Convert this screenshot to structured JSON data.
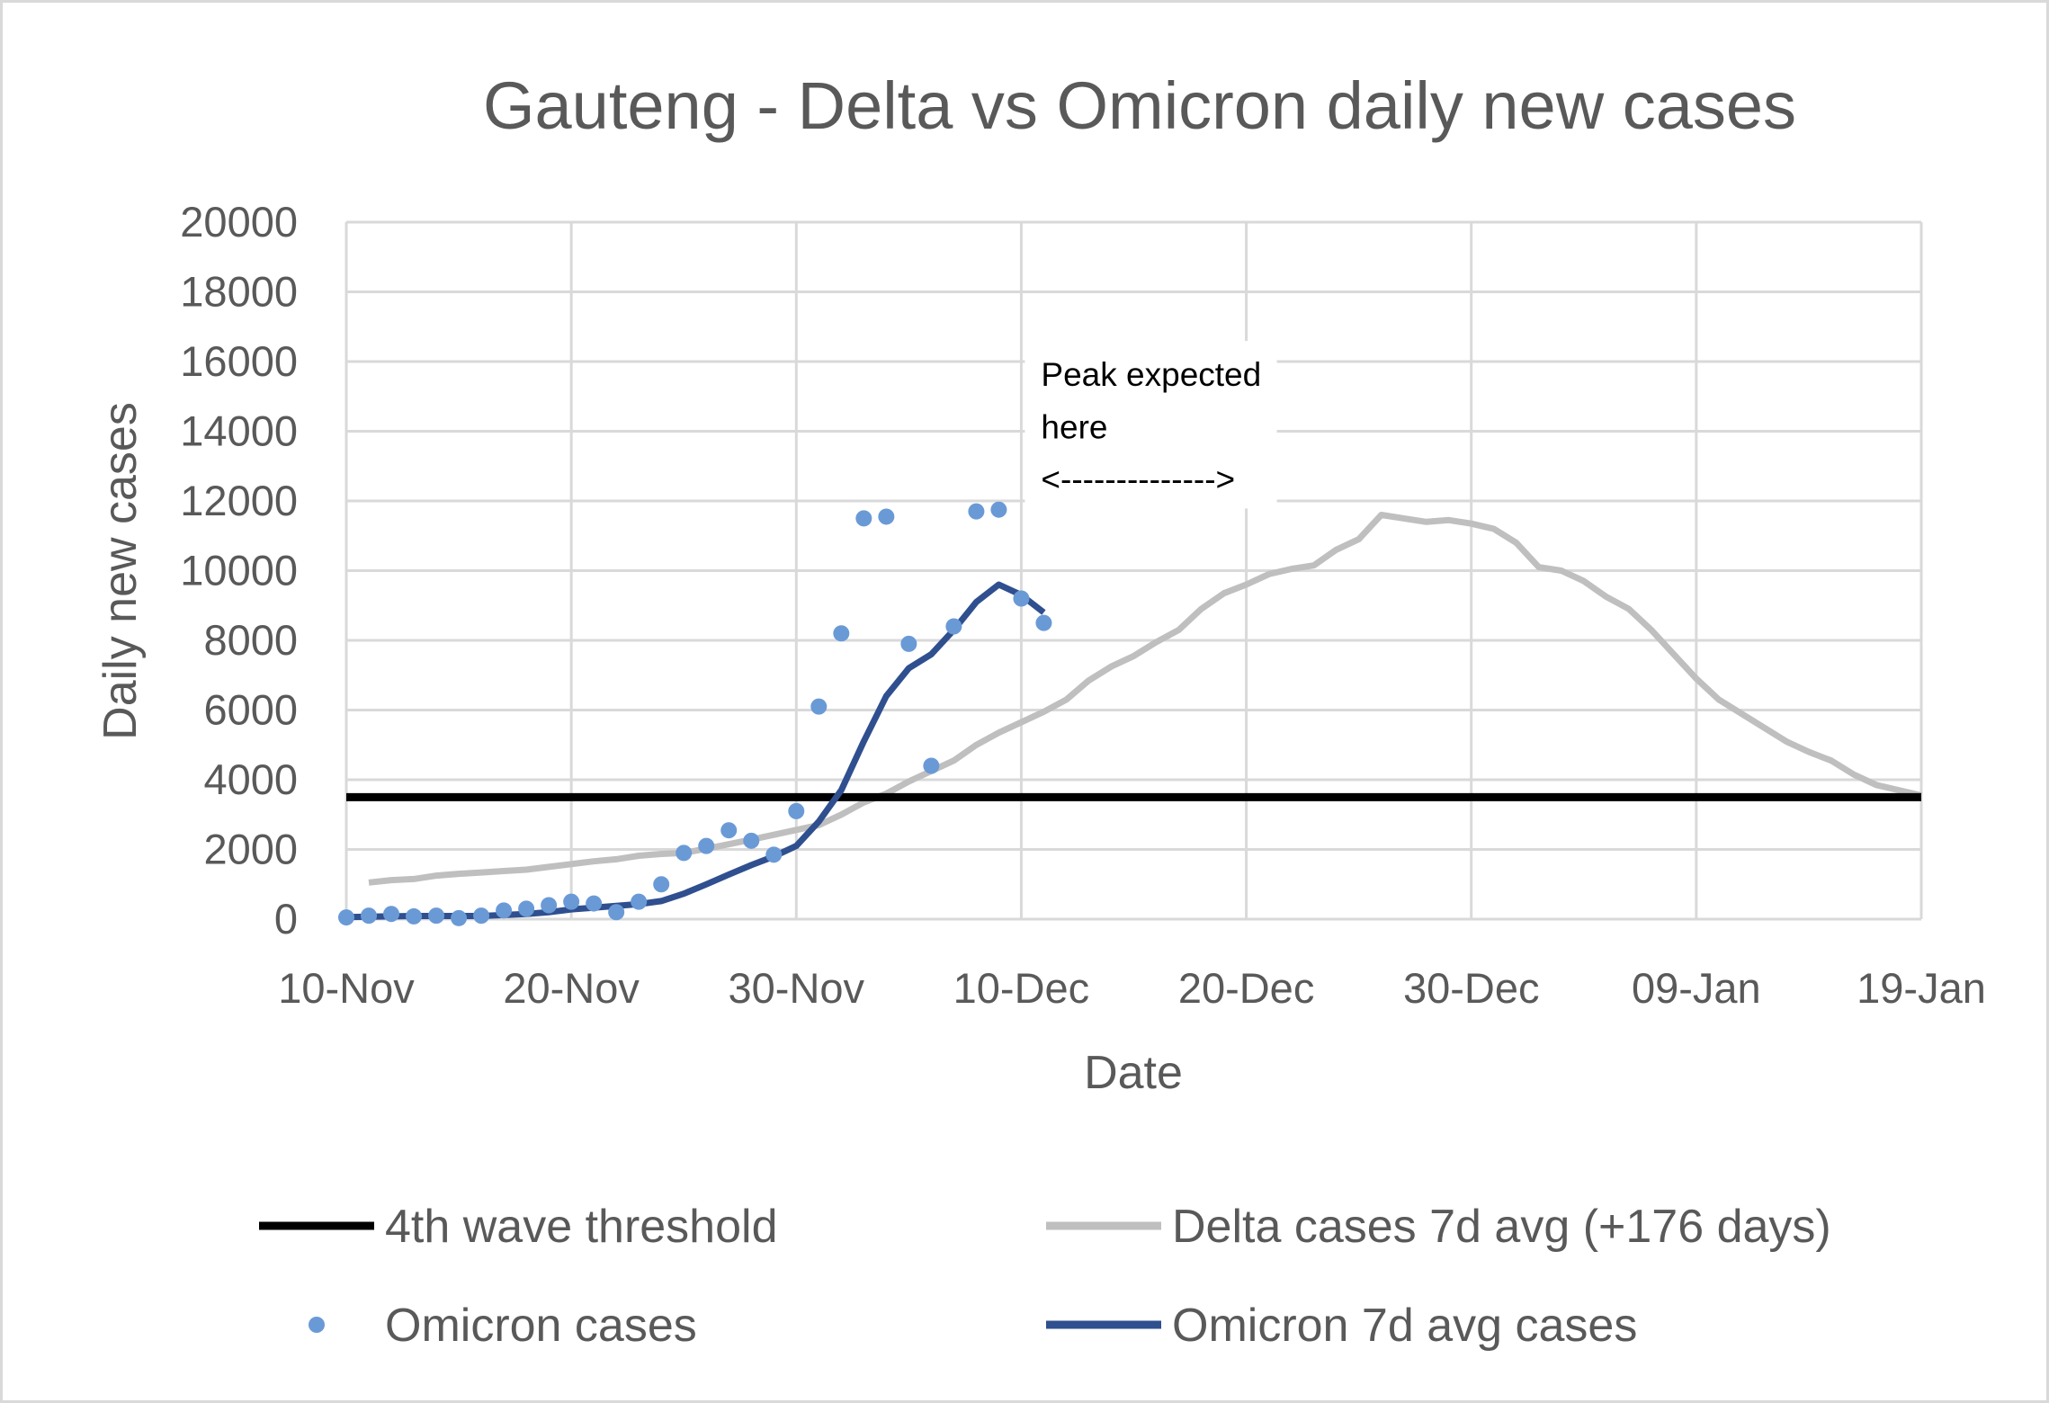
{
  "chart_data": {
    "type": "line",
    "title": "Gauteng -  Delta vs Omicron daily new cases",
    "xlabel": "Date",
    "ylabel": "Daily new cases",
    "x_range": [
      "2021-11-10",
      "2022-01-19"
    ],
    "ylim": [
      0,
      20000
    ],
    "y_ticks": [
      "0",
      "2000",
      "4000",
      "6000",
      "8000",
      "10000",
      "12000",
      "14000",
      "16000",
      "18000",
      "20000"
    ],
    "x_ticks": [
      {
        "date": "2021-11-10",
        "label": "10-Nov"
      },
      {
        "date": "2021-11-20",
        "label": "20-Nov"
      },
      {
        "date": "2021-11-30",
        "label": "30-Nov"
      },
      {
        "date": "2021-12-10",
        "label": "10-Dec"
      },
      {
        "date": "2021-12-20",
        "label": "20-Dec"
      },
      {
        "date": "2021-12-30",
        "label": "30-Dec"
      },
      {
        "date": "2022-01-09",
        "label": "09-Jan"
      },
      {
        "date": "2022-01-19",
        "label": "19-Jan"
      }
    ],
    "grid": true,
    "legend_position": "bottom",
    "annotation": {
      "lines": [
        "Peak expected",
        "here",
        "<-------------->"
      ],
      "x_start": "2021-12-10",
      "x_end": "2021-12-20",
      "y_values": [
        15300,
        13800,
        12300
      ]
    },
    "series": [
      {
        "name": "4th wave threshold",
        "kind": "line",
        "color": "#000000",
        "x": [
          "2021-11-10",
          "2022-01-19"
        ],
        "y": [
          3500,
          3500
        ]
      },
      {
        "name": "Delta cases 7d avg (+176 days)",
        "kind": "line",
        "color": "#bfbfbf",
        "x": [
          "2021-11-11",
          "2021-11-12",
          "2021-11-13",
          "2021-11-14",
          "2021-11-15",
          "2021-11-16",
          "2021-11-17",
          "2021-11-18",
          "2021-11-19",
          "2021-11-20",
          "2021-11-21",
          "2021-11-22",
          "2021-11-23",
          "2021-11-24",
          "2021-11-25",
          "2021-11-26",
          "2021-11-27",
          "2021-11-28",
          "2021-11-29",
          "2021-11-30",
          "2021-12-01",
          "2021-12-02",
          "2021-12-03",
          "2021-12-04",
          "2021-12-05",
          "2021-12-06",
          "2021-12-07",
          "2021-12-08",
          "2021-12-09",
          "2021-12-10",
          "2021-12-11",
          "2021-12-12",
          "2021-12-13",
          "2021-12-14",
          "2021-12-15",
          "2021-12-16",
          "2021-12-17",
          "2021-12-18",
          "2021-12-19",
          "2021-12-20",
          "2021-12-21",
          "2021-12-22",
          "2021-12-23",
          "2021-12-24",
          "2021-12-25",
          "2021-12-26",
          "2021-12-27",
          "2021-12-28",
          "2021-12-29",
          "2021-12-30",
          "2021-12-31",
          "2022-01-01",
          "2022-01-02",
          "2022-01-03",
          "2022-01-04",
          "2022-01-05",
          "2022-01-06",
          "2022-01-07",
          "2022-01-08",
          "2022-01-09",
          "2022-01-10",
          "2022-01-11",
          "2022-01-12",
          "2022-01-13",
          "2022-01-14",
          "2022-01-15",
          "2022-01-16",
          "2022-01-17",
          "2022-01-18",
          "2022-01-19"
        ],
        "y": [
          1050,
          1120,
          1150,
          1250,
          1300,
          1340,
          1380,
          1420,
          1500,
          1580,
          1660,
          1720,
          1820,
          1870,
          1900,
          2020,
          2150,
          2280,
          2420,
          2560,
          2700,
          3000,
          3350,
          3600,
          3950,
          4250,
          4550,
          5000,
          5350,
          5650,
          5950,
          6300,
          6850,
          7250,
          7550,
          7950,
          8300,
          8900,
          9350,
          9600,
          9900,
          10050,
          10150,
          10600,
          10900,
          11600,
          11500,
          11400,
          11450,
          11350,
          11200,
          10800,
          10100,
          10000,
          9700,
          9250,
          8900,
          8300,
          7600,
          6900,
          6300,
          5900,
          5500,
          5100,
          4800,
          4550,
          4150,
          3850,
          3700,
          3550
        ]
      },
      {
        "name": "Omicron cases",
        "kind": "scatter",
        "color": "#6a9ad6",
        "x": [
          "2021-11-10",
          "2021-11-11",
          "2021-11-12",
          "2021-11-13",
          "2021-11-14",
          "2021-11-15",
          "2021-11-16",
          "2021-11-17",
          "2021-11-18",
          "2021-11-19",
          "2021-11-20",
          "2021-11-21",
          "2021-11-22",
          "2021-11-23",
          "2021-11-24",
          "2021-11-25",
          "2021-11-26",
          "2021-11-27",
          "2021-11-28",
          "2021-11-29",
          "2021-11-30",
          "2021-12-01",
          "2021-12-02",
          "2021-12-03",
          "2021-12-04",
          "2021-12-05",
          "2021-12-06",
          "2021-12-07",
          "2021-12-08",
          "2021-12-09",
          "2021-12-10",
          "2021-12-11"
        ],
        "y": [
          50,
          100,
          150,
          80,
          100,
          30,
          100,
          250,
          300,
          400,
          500,
          450,
          200,
          500,
          1000,
          1900,
          2100,
          2550,
          2250,
          1850,
          3100,
          6100,
          8200,
          11500,
          11550,
          7900,
          4400,
          8400,
          11700,
          11750,
          9200,
          8500
        ]
      },
      {
        "name": "Omicron 7d avg cases",
        "kind": "line",
        "color": "#2f4f8f",
        "x": [
          "2021-11-10",
          "2021-11-11",
          "2021-11-12",
          "2021-11-13",
          "2021-11-14",
          "2021-11-15",
          "2021-11-16",
          "2021-11-17",
          "2021-11-18",
          "2021-11-19",
          "2021-11-20",
          "2021-11-21",
          "2021-11-22",
          "2021-11-23",
          "2021-11-24",
          "2021-11-25",
          "2021-11-26",
          "2021-11-27",
          "2021-11-28",
          "2021-11-29",
          "2021-11-30",
          "2021-12-01",
          "2021-12-02",
          "2021-12-03",
          "2021-12-04",
          "2021-12-05",
          "2021-12-06",
          "2021-12-07",
          "2021-12-08",
          "2021-12-09",
          "2021-12-10",
          "2021-12-11"
        ],
        "y": [
          60,
          70,
          80,
          90,
          90,
          90,
          90,
          120,
          150,
          200,
          280,
          330,
          380,
          430,
          520,
          730,
          1000,
          1280,
          1550,
          1800,
          2100,
          2800,
          3700,
          5100,
          6400,
          7200,
          7600,
          8300,
          9100,
          9600,
          9300,
          8800
        ]
      }
    ]
  }
}
